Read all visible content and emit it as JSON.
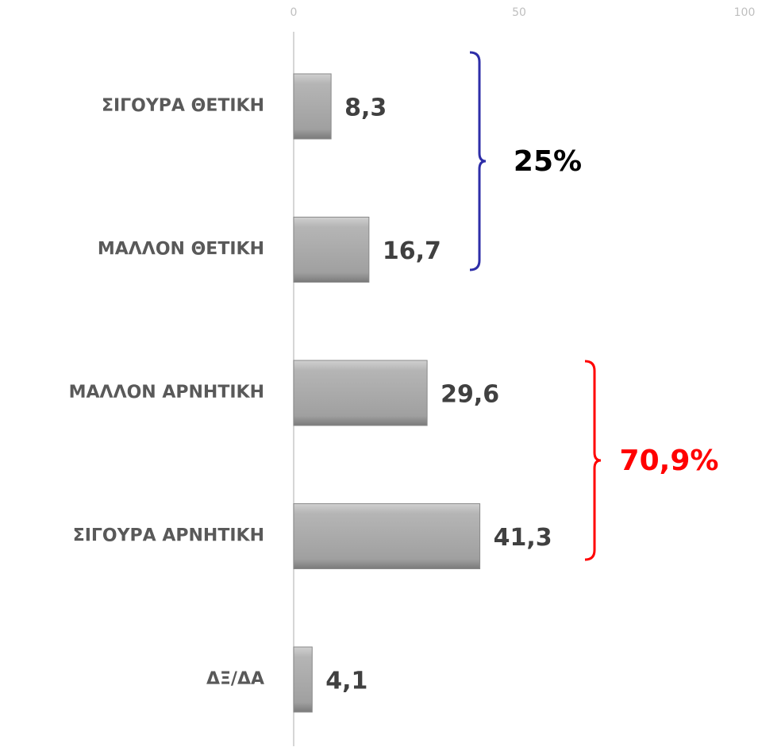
{
  "chart_data": {
    "type": "bar",
    "orientation": "horizontal",
    "categories": [
      "ΣΙΓΟΥΡΑ ΘΕΤΙΚΗ",
      "ΜΑΛΛΟΝ ΘΕΤΙΚΗ",
      "ΜΑΛΛΟΝ ΑΡΝΗΤΙΚΗ",
      "ΣΙΓΟΥΡΑ ΑΡΝΗΤΙΚΗ",
      "ΔΞ/ΔΑ"
    ],
    "values": [
      8.3,
      16.7,
      29.6,
      41.3,
      4.1
    ],
    "value_labels": [
      "8,3",
      "16,7",
      "29,6",
      "41,3",
      "4,1"
    ],
    "color": "#a6a6a6",
    "xlim": [
      0,
      100
    ],
    "xticks": [
      0,
      50,
      100
    ],
    "grid": false,
    "annotations": [
      {
        "text": "25%",
        "color": "#2e2ea8"
      },
      {
        "text": "70,9%",
        "color": "#ff0000"
      }
    ]
  }
}
